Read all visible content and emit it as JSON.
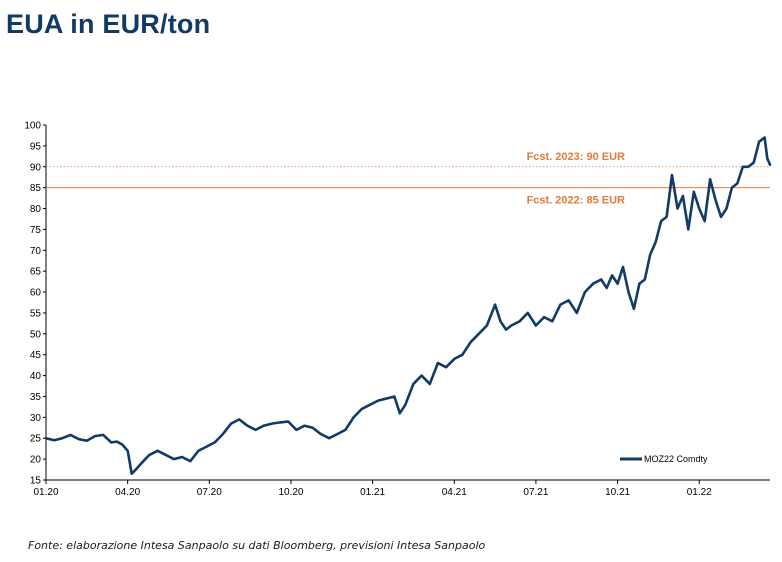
{
  "title": "EUA in EUR/ton",
  "source": "Fonte: elaborazione Intesa Sanpaolo su dati Bloomberg, previsioni Intesa Sanpaolo",
  "colors": {
    "title": "#123a66",
    "series": "#123a66",
    "forecast": "#e07b39"
  },
  "chart_data": {
    "type": "line",
    "title": "EUA in EUR/ton",
    "xlabel": "",
    "ylabel": "",
    "ylim": [
      15,
      100
    ],
    "xlim": [
      0,
      26.6
    ],
    "y_ticks": [
      15,
      20,
      25,
      30,
      35,
      40,
      45,
      50,
      55,
      60,
      65,
      70,
      75,
      80,
      85,
      90,
      95,
      100
    ],
    "x_ticks": [
      {
        "value": 0,
        "label": "01.20"
      },
      {
        "value": 3,
        "label": "04.20"
      },
      {
        "value": 6,
        "label": "07.20"
      },
      {
        "value": 9,
        "label": "10.20"
      },
      {
        "value": 12,
        "label": "01.21"
      },
      {
        "value": 15,
        "label": "04.21"
      },
      {
        "value": 18,
        "label": "07.21"
      },
      {
        "value": 21,
        "label": "10.21"
      },
      {
        "value": 24,
        "label": "01.22"
      }
    ],
    "grid": false,
    "legend": "bottom-right",
    "hlines": [
      {
        "value": 90,
        "label": "Fcst. 2023: 90 EUR",
        "style": "dotted"
      },
      {
        "value": 85,
        "label": "Fcst. 2022: 85 EUR",
        "style": "solid"
      }
    ],
    "series": [
      {
        "name": "MOZ22 Comdty",
        "x": [
          0,
          0.3,
          0.6,
          0.9,
          1.2,
          1.5,
          1.8,
          2.1,
          2.4,
          2.6,
          2.8,
          3.0,
          3.15,
          3.3,
          3.5,
          3.8,
          4.1,
          4.4,
          4.7,
          5.0,
          5.3,
          5.6,
          5.9,
          6.2,
          6.5,
          6.8,
          7.1,
          7.4,
          7.7,
          8.0,
          8.3,
          8.6,
          8.9,
          9.2,
          9.5,
          9.8,
          10.1,
          10.4,
          10.7,
          11.0,
          11.3,
          11.6,
          11.9,
          12.2,
          12.5,
          12.8,
          13.0,
          13.2,
          13.5,
          13.8,
          14.1,
          14.4,
          14.7,
          15.0,
          15.3,
          15.6,
          15.9,
          16.2,
          16.5,
          16.7,
          16.9,
          17.1,
          17.4,
          17.7,
          18.0,
          18.3,
          18.6,
          18.9,
          19.2,
          19.5,
          19.8,
          20.1,
          20.4,
          20.6,
          20.8,
          21.0,
          21.2,
          21.4,
          21.6,
          21.8,
          22.0,
          22.2,
          22.4,
          22.6,
          22.8,
          23.0,
          23.2,
          23.4,
          23.6,
          23.8,
          24.0,
          24.2,
          24.4,
          24.6,
          24.8,
          25.0,
          25.2,
          25.4,
          25.6,
          25.8,
          26.0,
          26.2,
          26.4,
          26.5,
          26.6
        ],
        "values": [
          25,
          24.5,
          25,
          25.8,
          24.8,
          24.4,
          25.5,
          25.8,
          24,
          24.2,
          23.5,
          22,
          16.5,
          17.5,
          19,
          21,
          22,
          21,
          20,
          20.5,
          19.5,
          22,
          23,
          24,
          26,
          28.5,
          29.5,
          28,
          27,
          28,
          28.5,
          28.8,
          29,
          27,
          28,
          27.5,
          26,
          25,
          26,
          27,
          30,
          32,
          33,
          34,
          34.5,
          35,
          31,
          33,
          38,
          40,
          38,
          43,
          42,
          44,
          45,
          48,
          50,
          52,
          57,
          53,
          51,
          52,
          53,
          55,
          52,
          54,
          53,
          57,
          58,
          55,
          60,
          62,
          63,
          61,
          64,
          62,
          66,
          60,
          56,
          62,
          63,
          69,
          72,
          77,
          78,
          88,
          80,
          83,
          75,
          84,
          80,
          77,
          87,
          82,
          78,
          80,
          85,
          86,
          90,
          90,
          91,
          96,
          97,
          92,
          90.5
        ]
      }
    ]
  }
}
